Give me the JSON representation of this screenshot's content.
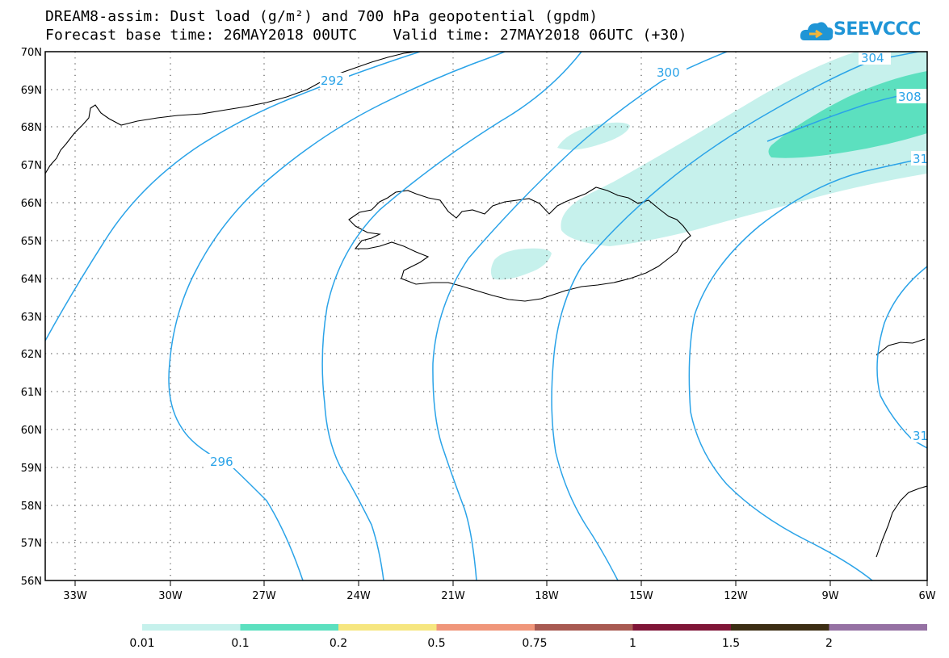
{
  "title": {
    "line1": "DREAM8-assim: Dust load (g/m²) and 700 hPa geopotential (gpdm)",
    "line2": "Forecast base time: 26MAY2018 00UTC    Valid time: 27MAY2018 06UTC (+30)"
  },
  "logo": {
    "text": "SEEVCCC"
  },
  "colors": {
    "contour": "#2aa3e8",
    "dust_light": "#c6f1ec",
    "dust_mid": "#5ce0bf",
    "coast": "#000000",
    "grid": "#555555"
  },
  "axes": {
    "lat_labels": [
      "70N",
      "69N",
      "68N",
      "67N",
      "66N",
      "65N",
      "64N",
      "63N",
      "62N",
      "61N",
      "60N",
      "59N",
      "58N",
      "57N",
      "56N"
    ],
    "lon_labels": [
      "33W",
      "30W",
      "27W",
      "24W",
      "21W",
      "18W",
      "15W",
      "12W",
      "9W",
      "6W"
    ]
  },
  "contour_labels": [
    {
      "id": "c292",
      "text": "292"
    },
    {
      "id": "c296",
      "text": "296"
    },
    {
      "id": "c300",
      "text": "300"
    },
    {
      "id": "c304",
      "text": "304"
    },
    {
      "id": "c308",
      "text": "308"
    },
    {
      "id": "c312a",
      "text": "31"
    },
    {
      "id": "c312b",
      "text": "31"
    }
  ],
  "colorbar": {
    "labels": [
      "0.01",
      "0.1",
      "0.2",
      "0.5",
      "0.75",
      "1",
      "1.5",
      "2"
    ],
    "colors": [
      "#c6f1ec",
      "#5ce0bf",
      "#f6e680",
      "#f0967a",
      "#a85a52",
      "#7f1537",
      "#3c2e14",
      "#9571a3"
    ]
  }
}
